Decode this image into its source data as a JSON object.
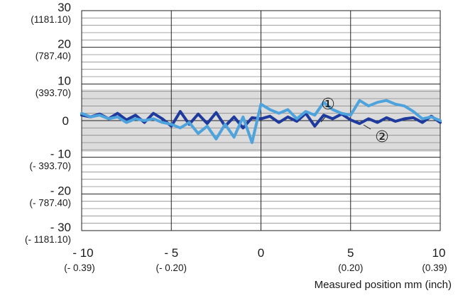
{
  "chart_data": {
    "type": "line",
    "title": "",
    "xlabel": "Measured position mm (inch)",
    "ylabel": "",
    "xlim": [
      -10,
      10
    ],
    "ylim": [
      -30,
      30
    ],
    "grid": true,
    "y_ticks": [
      {
        "value": 30,
        "main": "30",
        "sub": "(1181.10)"
      },
      {
        "value": 20,
        "main": "20",
        "sub": "(787.40)"
      },
      {
        "value": 10,
        "main": "10",
        "sub": "(393.70)"
      },
      {
        "value": 0,
        "main": "0",
        "sub": ""
      },
      {
        "value": -10,
        "main": "- 10",
        "sub": "(- 393.70)"
      },
      {
        "value": -20,
        "main": "- 20",
        "sub": "(- 787.40)"
      },
      {
        "value": -30,
        "main": "- 30",
        "sub": "(- 1181.10)"
      }
    ],
    "x_ticks": [
      {
        "value": -10,
        "main": "- 10",
        "sub": "(- 0.39)"
      },
      {
        "value": -5,
        "main": "- 5",
        "sub": "(- 0.20)"
      },
      {
        "value": 0,
        "main": "0",
        "sub": ""
      },
      {
        "value": 5,
        "main": "5",
        "sub": "(0.20)"
      },
      {
        "value": 10,
        "main": "10",
        "sub": "(0.39)"
      }
    ],
    "band": {
      "y_from": -8.5,
      "y_to": 8.5
    },
    "series": [
      {
        "marker": "②",
        "color": "#1e3a9c",
        "x": [
          -10,
          -9.5,
          -9,
          -8.5,
          -8,
          -7.5,
          -7,
          -6.5,
          -6,
          -5.5,
          -5,
          -4.5,
          -4,
          -3.5,
          -3,
          -2.5,
          -2,
          -1.5,
          -1,
          -0.5,
          0,
          0.5,
          1,
          1.5,
          2,
          2.5,
          3,
          3.5,
          4,
          4.5,
          5,
          5.5,
          6,
          6.5,
          7,
          7.5,
          8,
          8.5,
          9,
          9.5,
          10
        ],
        "y": [
          1.5,
          1.0,
          1.8,
          0.5,
          2.0,
          0.2,
          1.5,
          -0.5,
          2.0,
          0.5,
          -1.5,
          2.5,
          -1.0,
          1.8,
          -0.8,
          2.2,
          -1.5,
          1.0,
          -2.0,
          0.8,
          0.5,
          1.2,
          -0.5,
          1.0,
          -0.2,
          2.0,
          -1.5,
          1.5,
          0.5,
          1.8,
          0.2,
          -0.8,
          0.5,
          -0.5,
          0.8,
          -0.2,
          0.5,
          0.8,
          -0.5,
          1.2,
          -0.5
        ]
      },
      {
        "marker": "①",
        "color": "#4fa3dc",
        "x": [
          -10,
          -9.5,
          -9,
          -8.5,
          -8,
          -7.5,
          -7,
          -6.5,
          -6,
          -5.5,
          -5,
          -4.5,
          -4,
          -3.5,
          -3,
          -2.5,
          -2,
          -1.5,
          -1,
          -0.5,
          0,
          0.5,
          1,
          1.5,
          2,
          2.5,
          3,
          3.5,
          4,
          4.5,
          5,
          5.5,
          6,
          6.5,
          7,
          7.5,
          8,
          8.5,
          9,
          9.5,
          10
        ],
        "y": [
          2.0,
          1.0,
          1.5,
          0.5,
          1.0,
          -0.5,
          0.5,
          0.0,
          0.5,
          -0.5,
          -1.0,
          -2.0,
          -0.5,
          -3.5,
          -1.5,
          -5.0,
          -1.0,
          -4.5,
          1.0,
          -6.0,
          4.5,
          3.0,
          2.0,
          3.0,
          0.5,
          2.5,
          1.5,
          5.0,
          3.0,
          2.0,
          1.5,
          5.5,
          4.0,
          5.0,
          5.5,
          4.5,
          4.0,
          2.5,
          0.5,
          1.0,
          0.0
        ]
      }
    ]
  }
}
